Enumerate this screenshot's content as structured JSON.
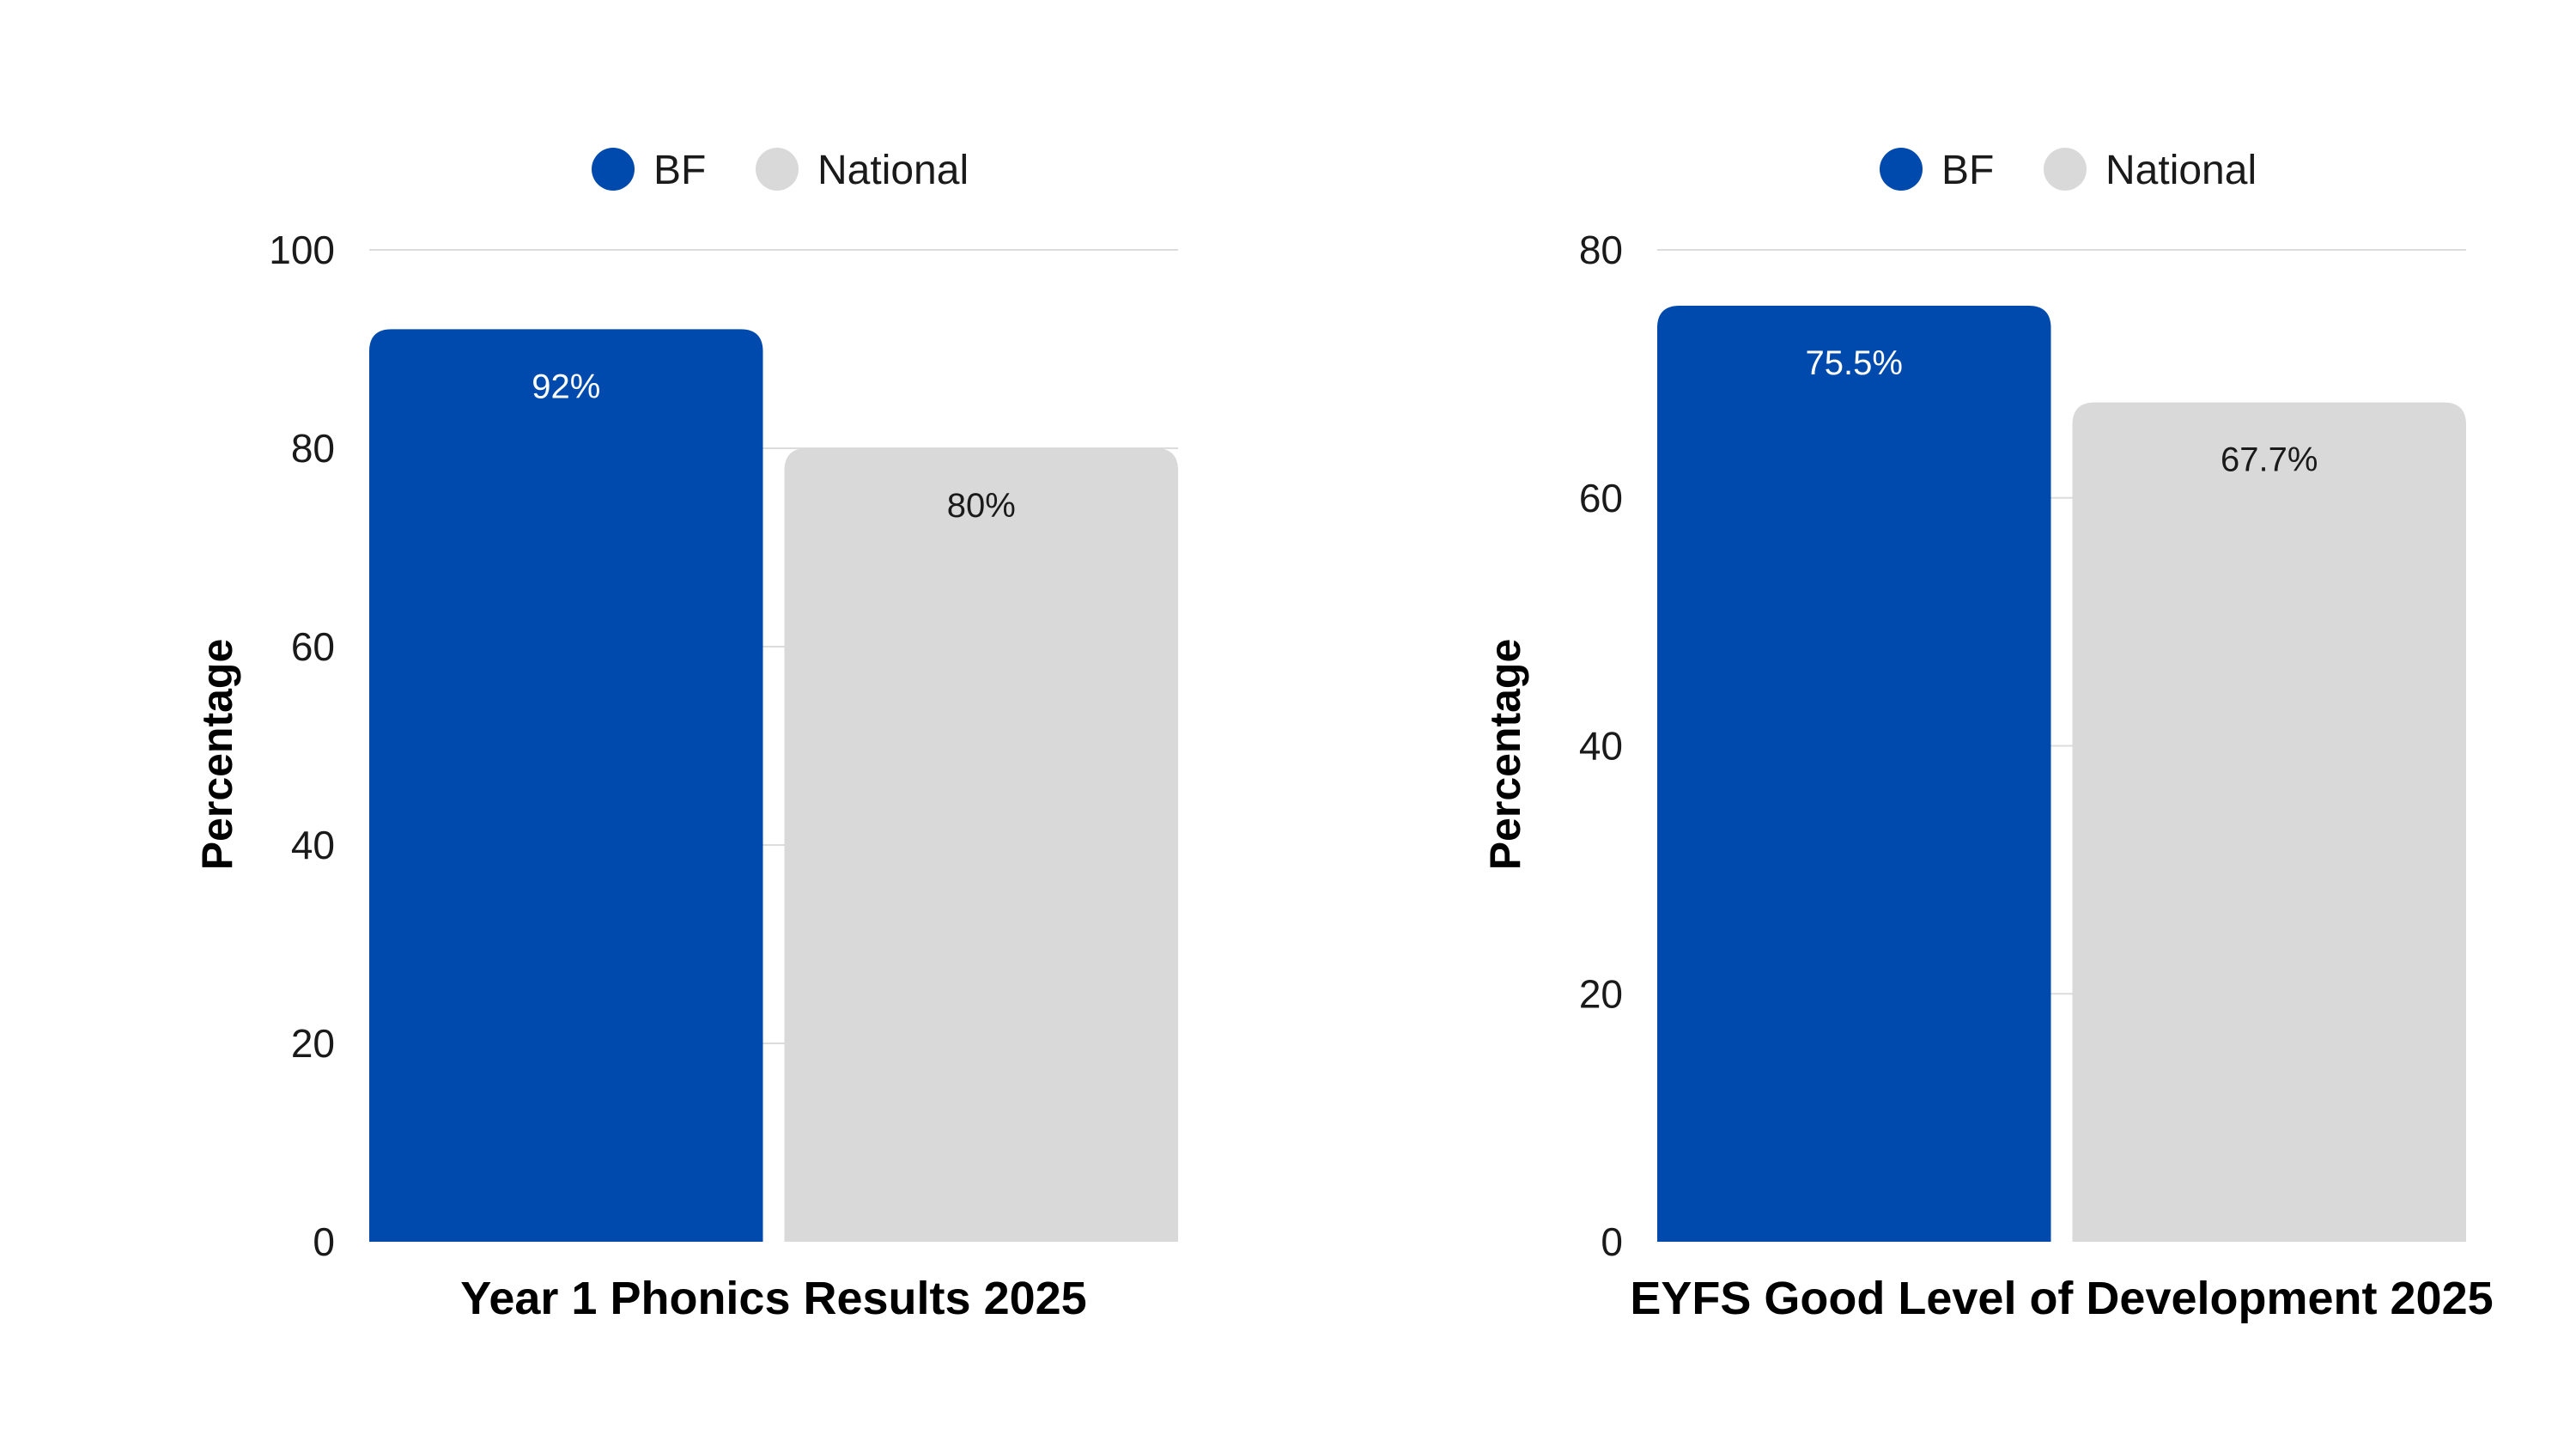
{
  "chart_data": [
    {
      "type": "bar",
      "title": "Year 1 Phonics Results 2025",
      "xlabel": "Year 1 Phonics Results 2025",
      "ylabel": "Percentage",
      "ylim": [
        0,
        100
      ],
      "yticks": [
        0,
        20,
        40,
        60,
        80,
        100
      ],
      "grid": true,
      "legend": "top-center",
      "series": [
        {
          "name": "BF",
          "value": 92,
          "label": "92%",
          "color": "#004AAD",
          "label_color": "#ffffff"
        },
        {
          "name": "National",
          "value": 80,
          "label": "80%",
          "color": "#D9D9D9",
          "label_color": "#1a1a1a"
        }
      ]
    },
    {
      "type": "bar",
      "title": "EYFS Good Level of Development 2025",
      "xlabel": "EYFS Good Level of Development 2025",
      "ylabel": "Percentage",
      "ylim": [
        0,
        80
      ],
      "yticks": [
        0,
        20,
        40,
        60,
        80
      ],
      "grid": true,
      "legend": "top-center",
      "series": [
        {
          "name": "BF",
          "value": 75.5,
          "label": "75.5%",
          "color": "#004AAD",
          "label_color": "#ffffff"
        },
        {
          "name": "National",
          "value": 67.7,
          "label": "67.7%",
          "color": "#D9D9D9",
          "label_color": "#1a1a1a"
        }
      ]
    }
  ]
}
